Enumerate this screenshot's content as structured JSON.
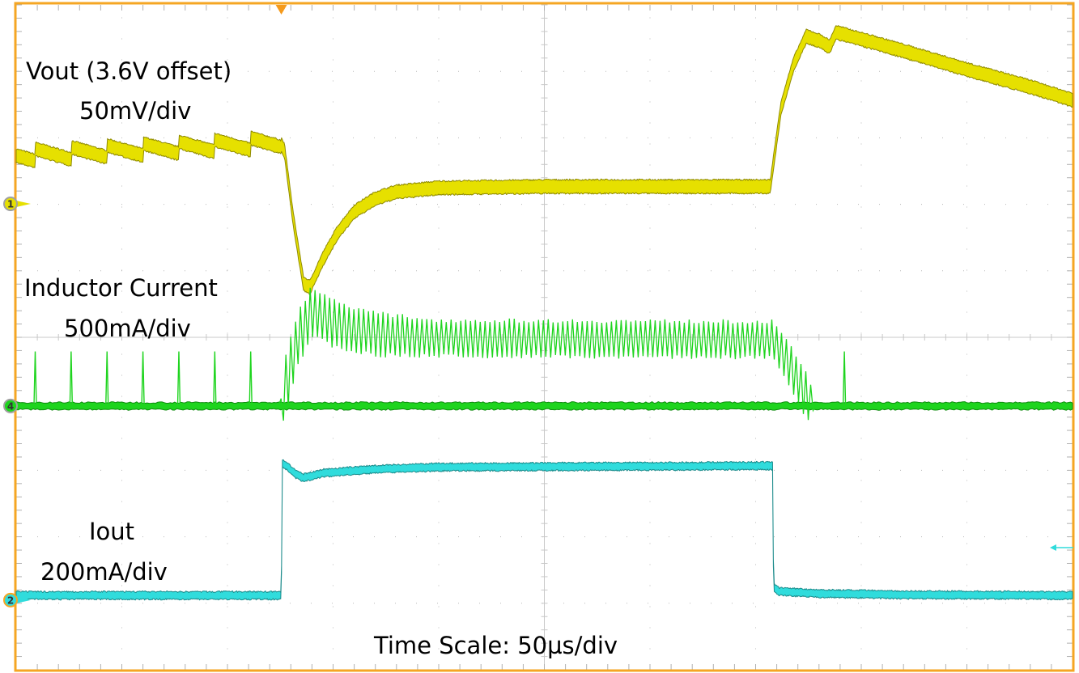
{
  "chart_data": {
    "type": "line",
    "title": "",
    "xlabel": "Time Scale: 50µs/div",
    "x_units": "µs",
    "xlim": [
      0,
      500
    ],
    "x_divisions": 10,
    "y_divisions": 10,
    "grid": true,
    "trigger_time_us": 125.5,
    "colors": {
      "frame": "#f5a623",
      "grid": "#b8b8b8"
    },
    "series": [
      {
        "name": "Vout (3.6V offset)",
        "scale_label": "50mV/div",
        "units": "mV",
        "per_div": 50,
        "channel": "1",
        "color": "#e6e000",
        "edge_color": "#8f8a00",
        "noise_pp": 9,
        "marker_offset_div": 0,
        "points": [
          [
            0,
            36
          ],
          [
            125,
            46
          ],
          [
            127,
            40
          ],
          [
            131,
            -10
          ],
          [
            136,
            -60
          ],
          [
            139,
            -63
          ],
          [
            145,
            -42
          ],
          [
            152,
            -22
          ],
          [
            160,
            -6
          ],
          [
            170,
            4
          ],
          [
            180,
            9
          ],
          [
            200,
            12
          ],
          [
            250,
            13
          ],
          [
            300,
            13
          ],
          [
            357,
            13
          ],
          [
            358,
            26
          ],
          [
            362,
            72
          ],
          [
            368,
            105
          ],
          [
            374,
            126
          ],
          [
            381,
            122
          ],
          [
            385,
            118
          ],
          [
            388,
            129
          ],
          [
            420,
            115
          ],
          [
            450,
            101
          ],
          [
            480,
            88
          ],
          [
            500,
            78
          ]
        ],
        "pfm_step_mv": 9
      },
      {
        "name": "Inductor Current",
        "scale_label": "500mA/div",
        "units": "mA",
        "per_div": 500,
        "channel": "4",
        "color": "#1ed41e",
        "edge_color": "#0f8a0f",
        "noise_pp": 40,
        "marker_offset_div": -3.04,
        "pfm_spike_times_us": [
          9,
          26,
          43,
          60,
          77,
          94,
          111,
          392
        ],
        "pfm_spike_peak_ma": 410,
        "switching_period_us": 2.3,
        "average": [
          [
            0,
            0
          ],
          [
            125,
            0
          ],
          [
            127,
            100
          ],
          [
            133,
            500
          ],
          [
            140,
            720
          ],
          [
            150,
            620
          ],
          [
            170,
            540
          ],
          [
            200,
            510
          ],
          [
            358,
            500
          ],
          [
            366,
            300
          ],
          [
            375,
            60
          ],
          [
            378,
            0
          ],
          [
            500,
            0
          ]
        ],
        "ripple_pp": [
          [
            0,
            0
          ],
          [
            125,
            0
          ],
          [
            127,
            500
          ],
          [
            140,
            400
          ],
          [
            200,
            300
          ],
          [
            358,
            300
          ],
          [
            375,
            400
          ],
          [
            378,
            0
          ],
          [
            500,
            0
          ]
        ]
      },
      {
        "name": "Iout",
        "scale_label": "200mA/div",
        "units": "mA",
        "per_div": 200,
        "channel": "2",
        "color": "#30dcdc",
        "edge_color": "#1a8a8a",
        "noise_pp": 18,
        "marker_offset_div": -5.96,
        "points": [
          [
            0,
            14
          ],
          [
            125.5,
            14
          ],
          [
            126,
            410
          ],
          [
            128,
            404
          ],
          [
            132,
            380
          ],
          [
            136,
            368
          ],
          [
            145,
            382
          ],
          [
            170,
            394
          ],
          [
            200,
            400
          ],
          [
            358,
            404
          ],
          [
            358.5,
            40
          ],
          [
            361,
            26
          ],
          [
            380,
            20
          ],
          [
            420,
            16
          ],
          [
            500,
            14
          ]
        ]
      }
    ],
    "labels": {
      "vout_name": "Vout (3.6V offset)",
      "vout_scale": "50mV/div",
      "il_name": "Inductor Current",
      "il_scale": "500mA/div",
      "iout_name": "Iout",
      "iout_scale": "200mA/div",
      "time_scale": "Time Scale: 50µs/div"
    }
  }
}
